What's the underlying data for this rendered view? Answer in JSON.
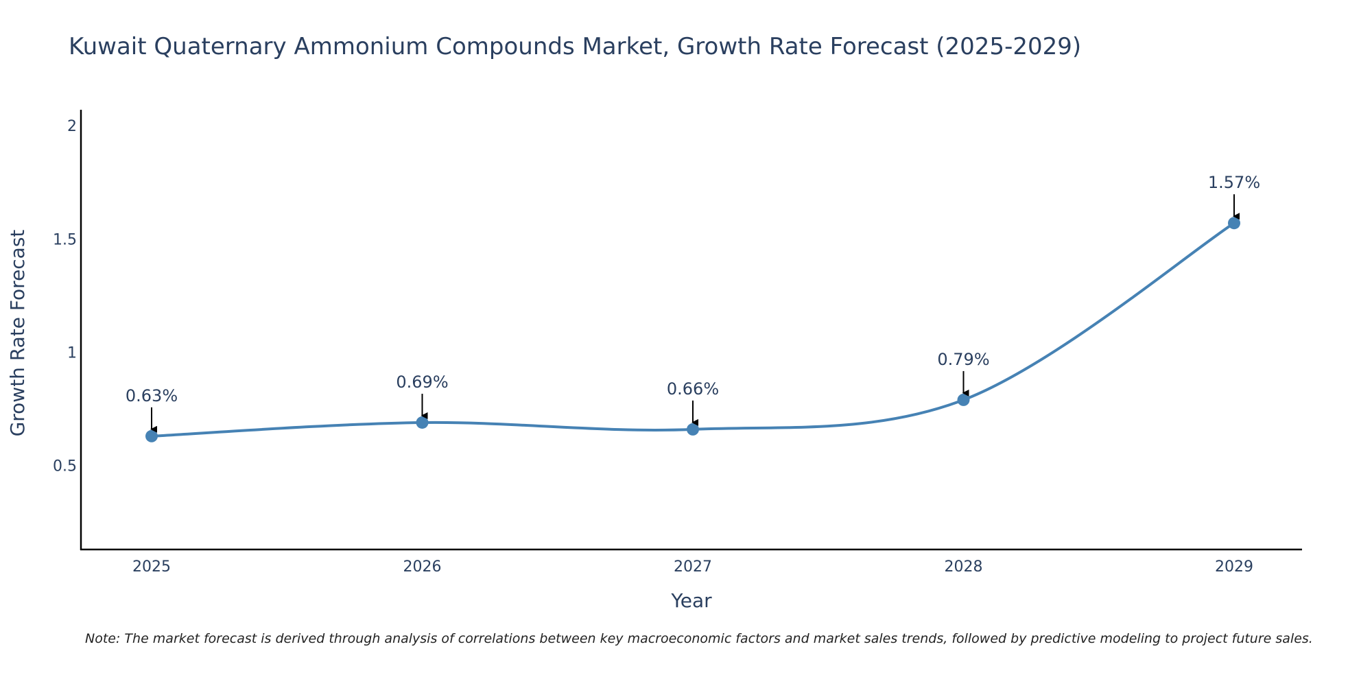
{
  "chart_data": {
    "type": "line",
    "title": "Kuwait Quaternary Ammonium Compounds Market, Growth Rate Forecast (2025-2029)",
    "xlabel": "Year",
    "ylabel": "Growth Rate Forecast",
    "categories": [
      "2025",
      "2026",
      "2027",
      "2028",
      "2029"
    ],
    "values": [
      0.63,
      0.69,
      0.66,
      0.79,
      1.57
    ],
    "data_labels": [
      "0.63%",
      "0.69%",
      "0.66%",
      "0.79%",
      "1.57%"
    ],
    "ylim": [
      0.13,
      2.07
    ],
    "yticks": [
      0.5,
      1,
      1.5,
      2
    ],
    "ytick_labels": [
      "0.5",
      "1",
      "1.5",
      "2"
    ],
    "line_color": "#4682b4",
    "marker_color": "#4682b4",
    "annotation_arrow_color": "#000000",
    "text_color": "#2a3f5f",
    "grid": false,
    "note": "Note: The market forecast is derived through analysis of correlations between key macroeconomic factors and market sales trends, followed by predictive modeling to project future sales."
  }
}
